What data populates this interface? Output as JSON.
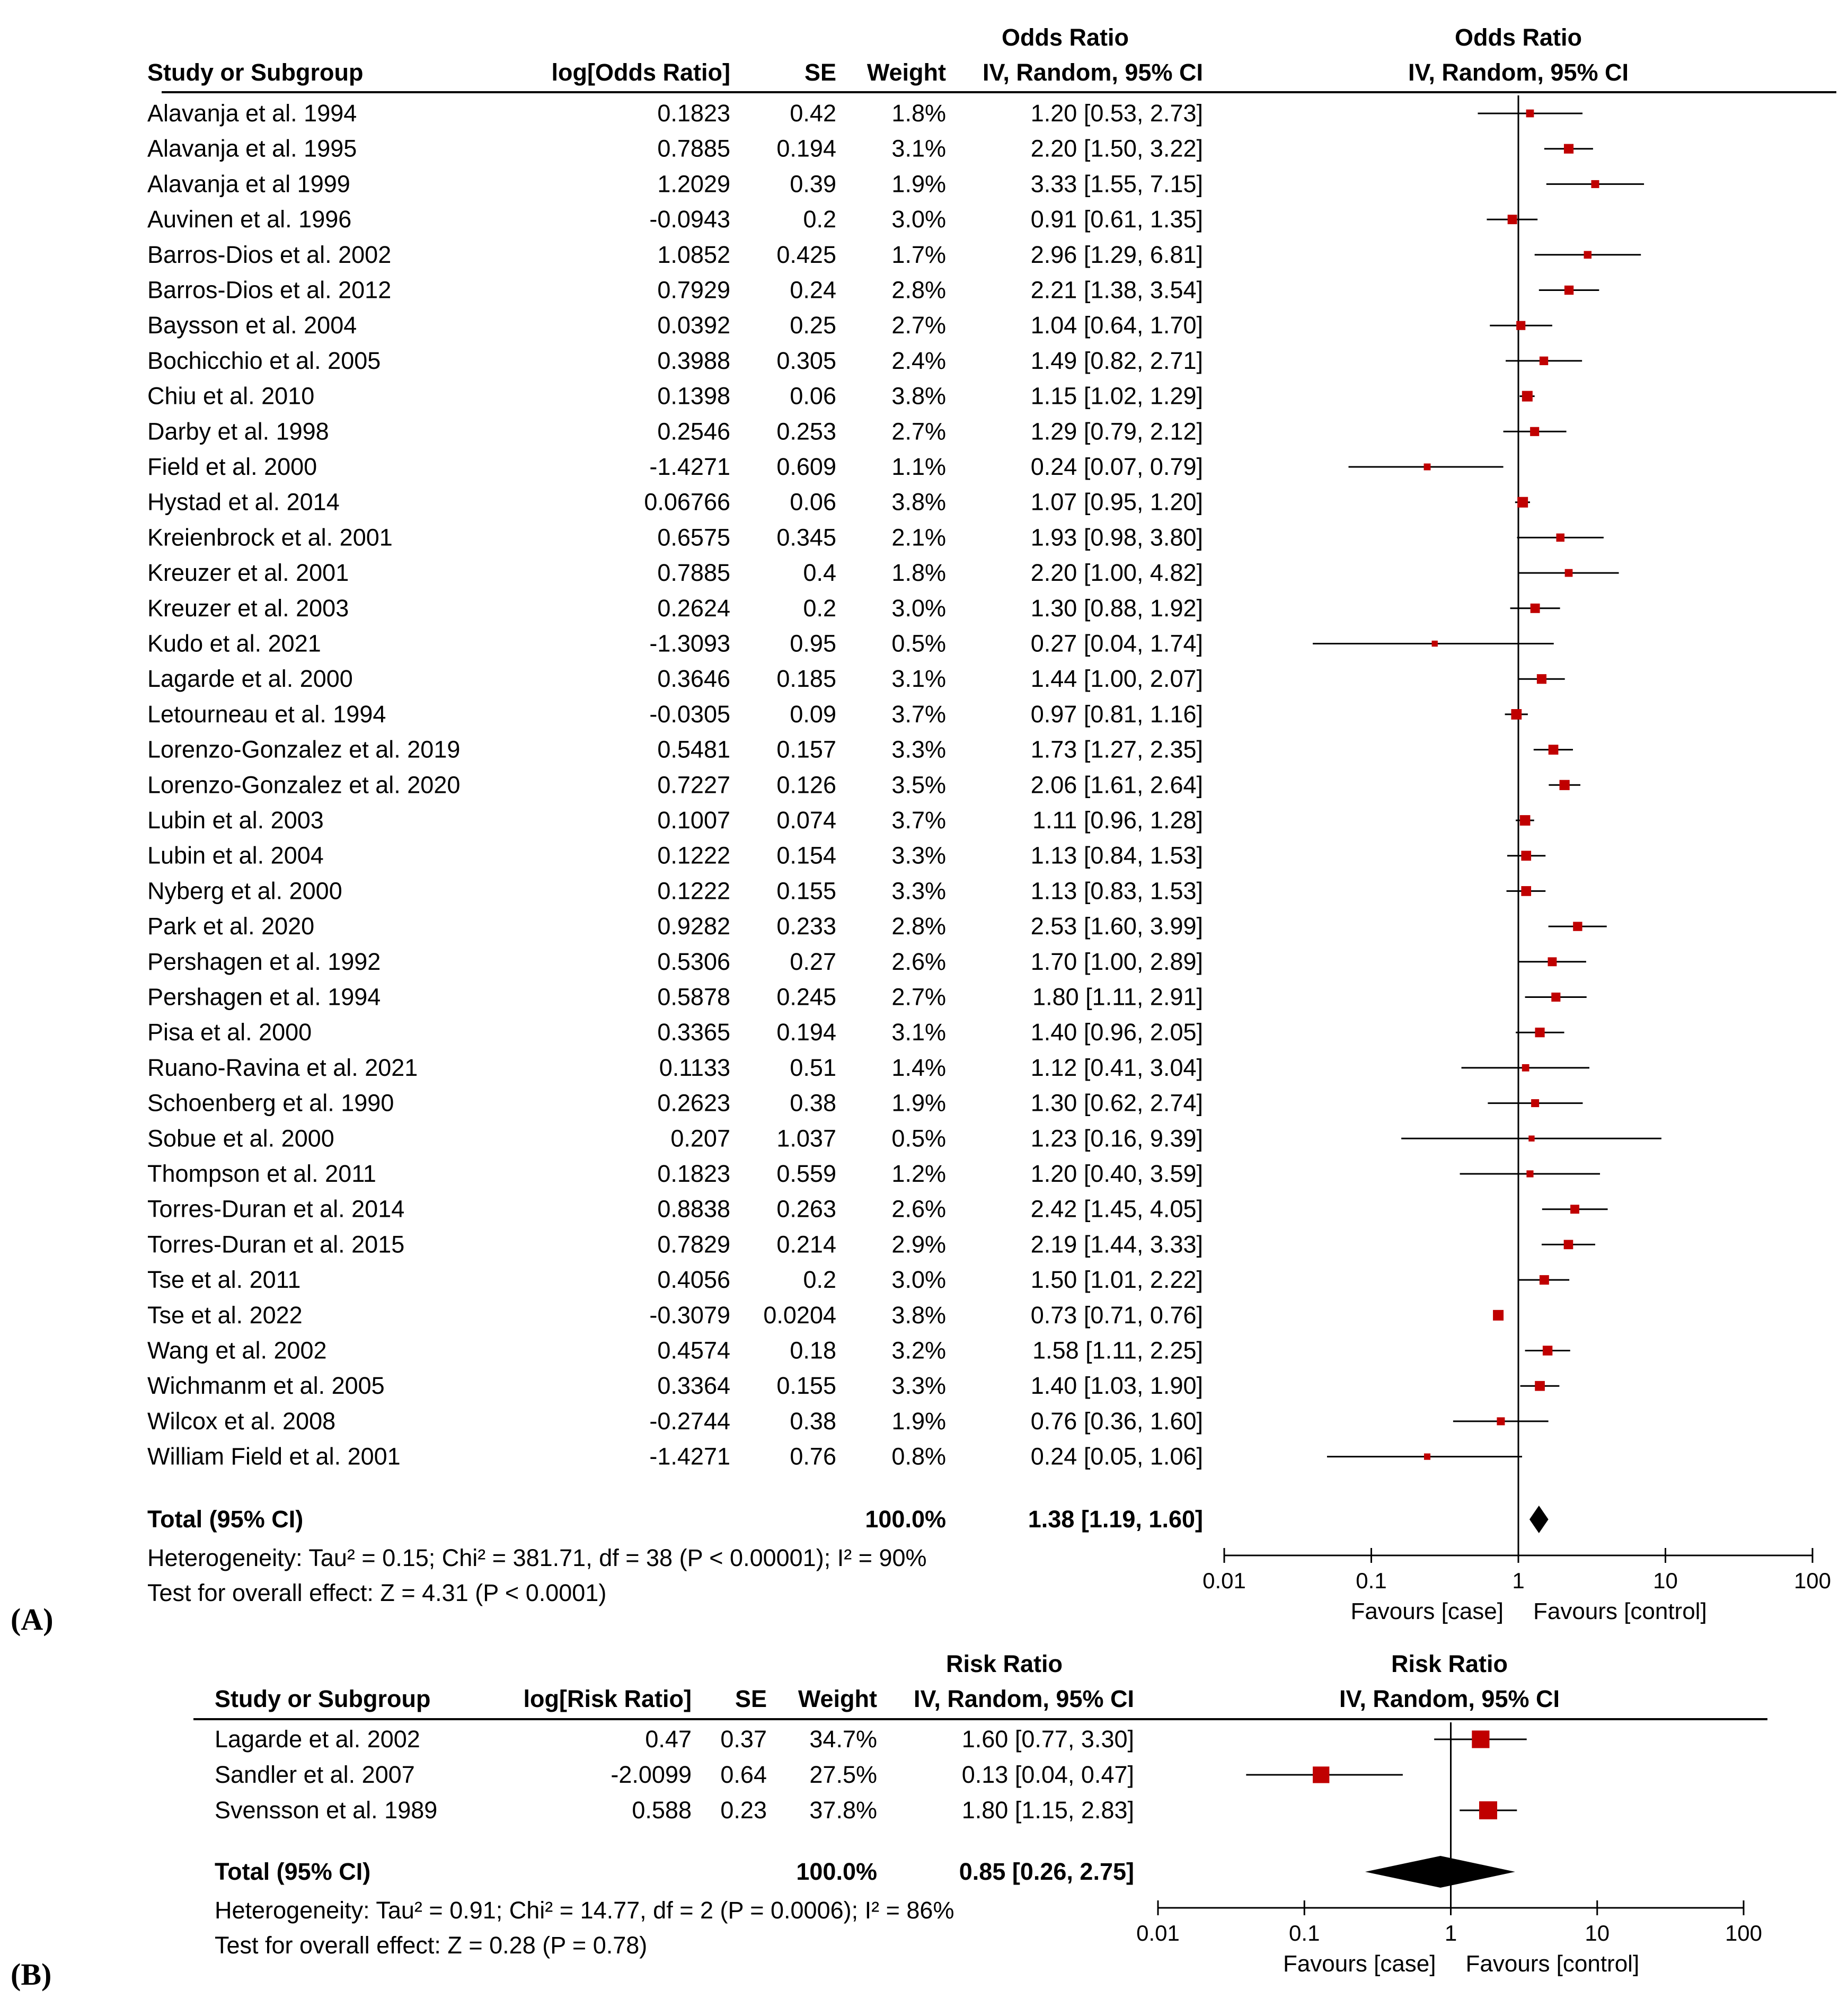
{
  "panels": [
    {
      "label": "(A)",
      "effect_measure": "Odds Ratio",
      "method_label": "IV, Random, 95% CI",
      "columns": {
        "study": "Study or Subgroup",
        "log_effect": "log[Odds Ratio]",
        "se": "SE",
        "weight": "Weight",
        "ci_header_top": "Odds Ratio",
        "ci_header_bottom": "IV, Random, 95% CI",
        "plot_header_top": "Odds Ratio",
        "plot_header_bottom": "IV, Random, 95% CI"
      },
      "total": {
        "label": "Total (95% CI)",
        "weight": "100.0%",
        "ci_text": "1.38 [1.19, 1.60]",
        "est": 1.38,
        "lo": 1.19,
        "hi": 1.6
      },
      "heterogeneity": "Heterogeneity: Tau² = 0.15; Chi² = 381.71, df = 38 (P < 0.00001); I² = 90%",
      "overall_effect": "Test for overall effect: Z = 4.31 (P < 0.0001)",
      "axis": {
        "ticks": [
          0.01,
          0.1,
          1,
          10,
          100
        ],
        "tick_labels": [
          "0.01",
          "0.1",
          "1",
          "10",
          "100"
        ],
        "favours_left": "Favours [case]",
        "favours_right": "Favours [control]"
      }
    },
    {
      "label": "(B)",
      "effect_measure": "Risk Ratio",
      "method_label": "IV, Random, 95% CI",
      "columns": {
        "study": "Study or Subgroup",
        "log_effect": "log[Risk Ratio]",
        "se": "SE",
        "weight": "Weight",
        "ci_header_top": "Risk Ratio",
        "ci_header_bottom": "IV, Random, 95% CI",
        "plot_header_top": "Risk Ratio",
        "plot_header_bottom": "IV, Random, 95% CI"
      },
      "total": {
        "label": "Total (95% CI)",
        "weight": "100.0%",
        "ci_text": "0.85 [0.26, 2.75]",
        "est": 0.85,
        "lo": 0.26,
        "hi": 2.75
      },
      "heterogeneity": "Heterogeneity: Tau² = 0.91; Chi² = 14.77, df = 2 (P = 0.0006); I² = 86%",
      "overall_effect": "Test for overall effect: Z = 0.28 (P = 0.78)",
      "axis": {
        "ticks": [
          0.01,
          0.1,
          1,
          10,
          100
        ],
        "tick_labels": [
          "0.01",
          "0.1",
          "1",
          "10",
          "100"
        ],
        "favours_left": "Favours [case]",
        "favours_right": "Favours [control]"
      }
    }
  ],
  "chart_data": [
    {
      "type": "forest",
      "title": "(A)",
      "effect_measure": "Odds Ratio",
      "x_scale": "log",
      "xlim": [
        0.01,
        100
      ],
      "studies": [
        {
          "name": "Alavanja et al. 1994",
          "log_effect": "0.1823",
          "se": "0.42",
          "weight": "1.8%",
          "ci_text": "1.20 [0.53, 2.73]",
          "est": 1.2,
          "lo": 0.53,
          "hi": 2.73
        },
        {
          "name": "Alavanja  et al.  1995",
          "log_effect": "0.7885",
          "se": "0.194",
          "weight": "3.1%",
          "ci_text": "2.20 [1.50, 3.22]",
          "est": 2.2,
          "lo": 1.5,
          "hi": 3.22
        },
        {
          "name": "Alavanja  et al 1999",
          "log_effect": "1.2029",
          "se": "0.39",
          "weight": "1.9%",
          "ci_text": "3.33 [1.55, 7.15]",
          "est": 3.33,
          "lo": 1.55,
          "hi": 7.15
        },
        {
          "name": "Auvinen  et al.  1996",
          "log_effect": "-0.0943",
          "se": "0.2",
          "weight": "3.0%",
          "ci_text": "0.91 [0.61, 1.35]",
          "est": 0.91,
          "lo": 0.61,
          "hi": 1.35
        },
        {
          "name": "Barros-Dios et al.  2002",
          "log_effect": "1.0852",
          "se": "0.425",
          "weight": "1.7%",
          "ci_text": "2.96 [1.29, 6.81]",
          "est": 2.96,
          "lo": 1.29,
          "hi": 6.81
        },
        {
          "name": "Barros-Dios et al. 2012",
          "log_effect": "0.7929",
          "se": "0.24",
          "weight": "2.8%",
          "ci_text": "2.21 [1.38, 3.54]",
          "est": 2.21,
          "lo": 1.38,
          "hi": 3.54
        },
        {
          "name": "Baysson et al. 2004",
          "log_effect": "0.0392",
          "se": "0.25",
          "weight": "2.7%",
          "ci_text": "1.04 [0.64, 1.70]",
          "est": 1.04,
          "lo": 0.64,
          "hi": 1.7
        },
        {
          "name": "Bochicchio et al. 2005",
          "log_effect": "0.3988",
          "se": "0.305",
          "weight": "2.4%",
          "ci_text": "1.49 [0.82, 2.71]",
          "est": 1.49,
          "lo": 0.82,
          "hi": 2.71
        },
        {
          "name": "Chiu et al. 2010",
          "log_effect": "0.1398",
          "se": "0.06",
          "weight": "3.8%",
          "ci_text": "1.15 [1.02, 1.29]",
          "est": 1.15,
          "lo": 1.02,
          "hi": 1.29
        },
        {
          "name": "Darby et al. 1998",
          "log_effect": "0.2546",
          "se": "0.253",
          "weight": "2.7%",
          "ci_text": "1.29 [0.79, 2.12]",
          "est": 1.29,
          "lo": 0.79,
          "hi": 2.12
        },
        {
          "name": "Field et al. 2000",
          "log_effect": "-1.4271",
          "se": "0.609",
          "weight": "1.1%",
          "ci_text": "0.24 [0.07, 0.79]",
          "est": 0.24,
          "lo": 0.07,
          "hi": 0.79
        },
        {
          "name": "Hystad et al. 2014",
          "log_effect": "0.06766",
          "se": "0.06",
          "weight": "3.8%",
          "ci_text": "1.07 [0.95, 1.20]",
          "est": 1.07,
          "lo": 0.95,
          "hi": 1.2
        },
        {
          "name": "Kreienbrock et al. 2001",
          "log_effect": "0.6575",
          "se": "0.345",
          "weight": "2.1%",
          "ci_text": "1.93 [0.98, 3.80]",
          "est": 1.93,
          "lo": 0.98,
          "hi": 3.8
        },
        {
          "name": "Kreuzer et al. 2001",
          "log_effect": "0.7885",
          "se": "0.4",
          "weight": "1.8%",
          "ci_text": "2.20 [1.00, 4.82]",
          "est": 2.2,
          "lo": 1.0,
          "hi": 4.82
        },
        {
          "name": "Kreuzer et al. 2003",
          "log_effect": "0.2624",
          "se": "0.2",
          "weight": "3.0%",
          "ci_text": "1.30 [0.88, 1.92]",
          "est": 1.3,
          "lo": 0.88,
          "hi": 1.92
        },
        {
          "name": "Kudo et al. 2021",
          "log_effect": "-1.3093",
          "se": "0.95",
          "weight": "0.5%",
          "ci_text": "0.27 [0.04, 1.74]",
          "est": 0.27,
          "lo": 0.04,
          "hi": 1.74
        },
        {
          "name": "Lagarde et al. 2000",
          "log_effect": "0.3646",
          "se": "0.185",
          "weight": "3.1%",
          "ci_text": "1.44 [1.00, 2.07]",
          "est": 1.44,
          "lo": 1.0,
          "hi": 2.07
        },
        {
          "name": "Letourneau et al. 1994",
          "log_effect": "-0.0305",
          "se": "0.09",
          "weight": "3.7%",
          "ci_text": "0.97 [0.81, 1.16]",
          "est": 0.97,
          "lo": 0.81,
          "hi": 1.16
        },
        {
          "name": "Lorenzo-Gonzalez et al. 2019",
          "log_effect": "0.5481",
          "se": "0.157",
          "weight": "3.3%",
          "ci_text": "1.73 [1.27, 2.35]",
          "est": 1.73,
          "lo": 1.27,
          "hi": 2.35
        },
        {
          "name": "Lorenzo-Gonzalez et al. 2020",
          "log_effect": "0.7227",
          "se": "0.126",
          "weight": "3.5%",
          "ci_text": "2.06 [1.61, 2.64]",
          "est": 2.06,
          "lo": 1.61,
          "hi": 2.64
        },
        {
          "name": "Lubin et al. 2003",
          "log_effect": "0.1007",
          "se": "0.074",
          "weight": "3.7%",
          "ci_text": "1.11 [0.96, 1.28]",
          "est": 1.11,
          "lo": 0.96,
          "hi": 1.28
        },
        {
          "name": "Lubin et al. 2004",
          "log_effect": "0.1222",
          "se": "0.154",
          "weight": "3.3%",
          "ci_text": "1.13 [0.84, 1.53]",
          "est": 1.13,
          "lo": 0.84,
          "hi": 1.53
        },
        {
          "name": "Nyberg et al. 2000",
          "log_effect": "0.1222",
          "se": "0.155",
          "weight": "3.3%",
          "ci_text": "1.13 [0.83, 1.53]",
          "est": 1.13,
          "lo": 0.83,
          "hi": 1.53
        },
        {
          "name": "Park et al. 2020",
          "log_effect": "0.9282",
          "se": "0.233",
          "weight": "2.8%",
          "ci_text": "2.53 [1.60, 3.99]",
          "est": 2.53,
          "lo": 1.6,
          "hi": 3.99
        },
        {
          "name": "Pershagen et al. 1992",
          "log_effect": "0.5306",
          "se": "0.27",
          "weight": "2.6%",
          "ci_text": "1.70 [1.00, 2.89]",
          "est": 1.7,
          "lo": 1.0,
          "hi": 2.89
        },
        {
          "name": "Pershagen et al. 1994",
          "log_effect": "0.5878",
          "se": "0.245",
          "weight": "2.7%",
          "ci_text": "1.80 [1.11, 2.91]",
          "est": 1.8,
          "lo": 1.11,
          "hi": 2.91
        },
        {
          "name": "Pisa et al. 2000",
          "log_effect": "0.3365",
          "se": "0.194",
          "weight": "3.1%",
          "ci_text": "1.40 [0.96, 2.05]",
          "est": 1.4,
          "lo": 0.96,
          "hi": 2.05
        },
        {
          "name": "Ruano-Ravina et al. 2021",
          "log_effect": "0.1133",
          "se": "0.51",
          "weight": "1.4%",
          "ci_text": "1.12 [0.41, 3.04]",
          "est": 1.12,
          "lo": 0.41,
          "hi": 3.04
        },
        {
          "name": "Schoenberg et al. 1990",
          "log_effect": "0.2623",
          "se": "0.38",
          "weight": "1.9%",
          "ci_text": "1.30 [0.62, 2.74]",
          "est": 1.3,
          "lo": 0.62,
          "hi": 2.74
        },
        {
          "name": "Sobue et al. 2000",
          "log_effect": "0.207",
          "se": "1.037",
          "weight": "0.5%",
          "ci_text": "1.23 [0.16, 9.39]",
          "est": 1.23,
          "lo": 0.16,
          "hi": 9.39
        },
        {
          "name": "Thompson  et al. 2011",
          "log_effect": "0.1823",
          "se": "0.559",
          "weight": "1.2%",
          "ci_text": "1.20 [0.40, 3.59]",
          "est": 1.2,
          "lo": 0.4,
          "hi": 3.59
        },
        {
          "name": "Torres-Duran et al. 2014",
          "log_effect": "0.8838",
          "se": "0.263",
          "weight": "2.6%",
          "ci_text": "2.42 [1.45, 4.05]",
          "est": 2.42,
          "lo": 1.45,
          "hi": 4.05
        },
        {
          "name": "Torres-Duran et al. 2015",
          "log_effect": "0.7829",
          "se": "0.214",
          "weight": "2.9%",
          "ci_text": "2.19 [1.44, 3.33]",
          "est": 2.19,
          "lo": 1.44,
          "hi": 3.33
        },
        {
          "name": "Tse et al. 2011",
          "log_effect": "0.4056",
          "se": "0.2",
          "weight": "3.0%",
          "ci_text": "1.50 [1.01, 2.22]",
          "est": 1.5,
          "lo": 1.01,
          "hi": 2.22
        },
        {
          "name": "Tse et al. 2022",
          "log_effect": "-0.3079",
          "se": "0.0204",
          "weight": "3.8%",
          "ci_text": "0.73 [0.71, 0.76]",
          "est": 0.73,
          "lo": 0.71,
          "hi": 0.76
        },
        {
          "name": "Wang et al. 2002",
          "log_effect": "0.4574",
          "se": "0.18",
          "weight": "3.2%",
          "ci_text": "1.58 [1.11, 2.25]",
          "est": 1.58,
          "lo": 1.11,
          "hi": 2.25
        },
        {
          "name": "Wichmanm et al.  2005",
          "log_effect": "0.3364",
          "se": "0.155",
          "weight": "3.3%",
          "ci_text": "1.40 [1.03, 1.90]",
          "est": 1.4,
          "lo": 1.03,
          "hi": 1.9
        },
        {
          "name": "Wilcox et al. 2008",
          "log_effect": "-0.2744",
          "se": "0.38",
          "weight": "1.9%",
          "ci_text": "0.76 [0.36, 1.60]",
          "est": 0.76,
          "lo": 0.36,
          "hi": 1.6
        },
        {
          "name": "William Field et al.  2001",
          "log_effect": "-1.4271",
          "se": "0.76",
          "weight": "0.8%",
          "ci_text": "0.24 [0.05, 1.06]",
          "est": 0.24,
          "lo": 0.05,
          "hi": 1.06
        }
      ],
      "marker_color": "#c00000",
      "line_color": "#000000"
    },
    {
      "type": "forest",
      "title": "(B)",
      "effect_measure": "Risk Ratio",
      "x_scale": "log",
      "xlim": [
        0.01,
        100
      ],
      "studies": [
        {
          "name": "Lagarde et al. 2002",
          "log_effect": "0.47",
          "se": "0.37",
          "weight": "34.7%",
          "ci_text": "1.60 [0.77, 3.30]",
          "est": 1.6,
          "lo": 0.77,
          "hi": 3.3
        },
        {
          "name": "Sandler et al. 2007",
          "log_effect": "-2.0099",
          "se": "0.64",
          "weight": "27.5%",
          "ci_text": "0.13 [0.04, 0.47]",
          "est": 0.13,
          "lo": 0.04,
          "hi": 0.47
        },
        {
          "name": "Svensson et al. 1989",
          "log_effect": "0.588",
          "se": "0.23",
          "weight": "37.8%",
          "ci_text": "1.80 [1.15, 2.83]",
          "est": 1.8,
          "lo": 1.15,
          "hi": 2.83
        }
      ],
      "marker_color": "#c00000",
      "line_color": "#000000"
    }
  ]
}
